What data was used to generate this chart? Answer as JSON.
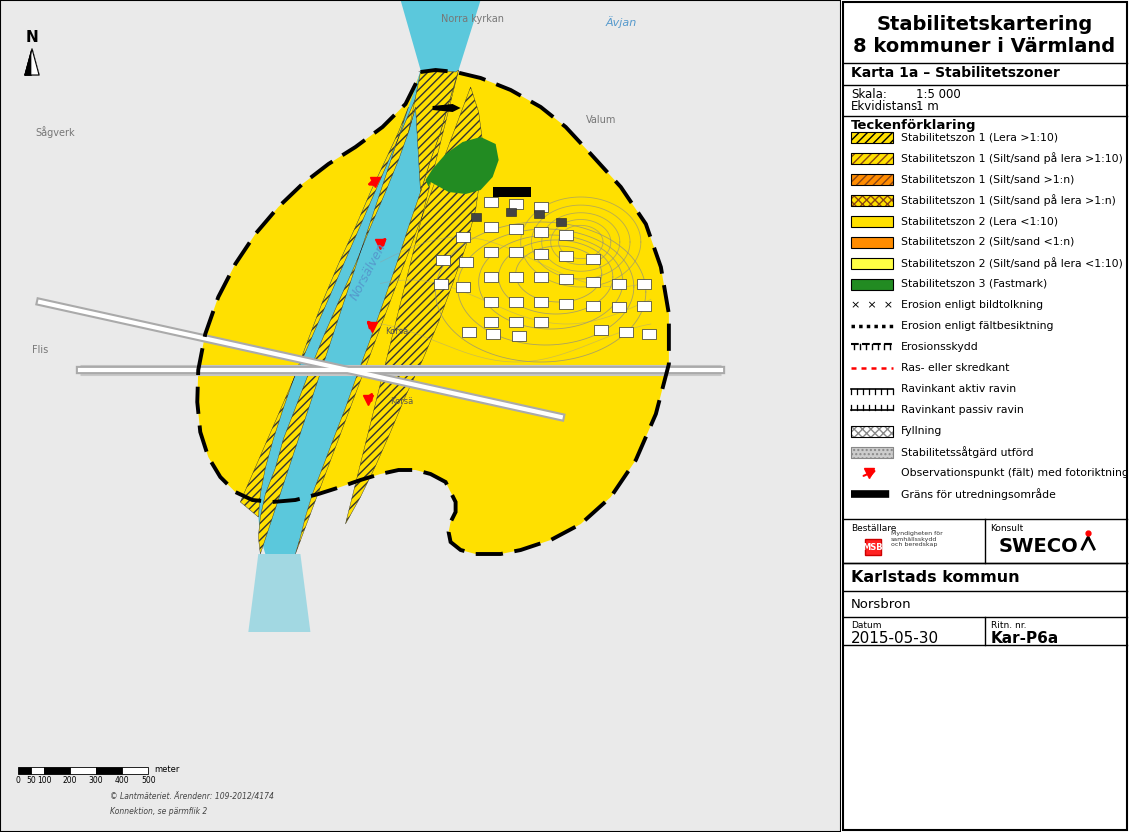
{
  "title1": "Stabilitetskartering",
  "title2": "8 kommuner i Värmland",
  "subtitle": "Karta 1a – Stabilitetszoner",
  "skala": "1:5 000",
  "ekvidistans": "1 m",
  "teckenforklaring": "Teckenförklaring",
  "legend_items": [
    {
      "type": "hatch",
      "color": "#FFE000",
      "hatch": "////",
      "hatch_color": "#000000",
      "label": "Stabilitetszon 1 (Lera >1:10)"
    },
    {
      "type": "hatch",
      "color": "#FFE000",
      "hatch": "////",
      "hatch_color": "#8B4513",
      "label": "Stabilitetszon 1 (Silt/sand på lera >1:10)"
    },
    {
      "type": "hatch",
      "color": "#FF8C00",
      "hatch": "////",
      "hatch_color": "#8B4513",
      "label": "Stabilitetszon 1 (Silt/sand >1:n)"
    },
    {
      "type": "hatch",
      "color": "#FFE000",
      "hatch": "xxxx",
      "hatch_color": "#8B4513",
      "label": "Stabilitetszon 1 (Silt/sand på lera >1:n)"
    },
    {
      "type": "solid",
      "color": "#FFE000",
      "label": "Stabilitetszon 2 (Lera <1:10)"
    },
    {
      "type": "solid",
      "color": "#FF8C00",
      "label": "Stabilitetszon 2 (Silt/sand <1:n)"
    },
    {
      "type": "solid",
      "color": "#FFFF44",
      "label": "Stabilitetszon 2 (Silt/sand på lera <1:10)"
    },
    {
      "type": "solid",
      "color": "#228B22",
      "label": "Stabilitetszon 3 (Fastmark)"
    },
    {
      "type": "cross_text",
      "label": "Erosion enligt bildtolkning"
    },
    {
      "type": "dotted_line",
      "label": "Erosion enligt fältbesiktning"
    },
    {
      "type": "dash_line_barrier",
      "label": "Erosionsskydd"
    },
    {
      "type": "red_dotted",
      "label": "Ras- eller skredkant"
    },
    {
      "type": "ravin_aktiv",
      "label": "Ravinkant aktiv ravin"
    },
    {
      "type": "ravin_passiv",
      "label": "Ravinkant passiv ravin"
    },
    {
      "type": "hatch_fill",
      "color": "#FFFFFF",
      "hatch": "xxxx",
      "hatch_color": "#888888",
      "label": "Fyllning"
    },
    {
      "type": "stipple_fill",
      "label": "Stabilitetssåtgärd utförd"
    },
    {
      "type": "red_arrow",
      "label": "Observationspunkt (fält) med fotoriktning"
    },
    {
      "type": "thick_dash",
      "label": "Gräns för utredningsområde"
    }
  ],
  "bestallare_label": "Beställare",
  "konsult_label": "Konsult",
  "konsult_name": "SWECO",
  "kommun": "Karlstads kommun",
  "projekt": "Norsbron",
  "datum_label": "Datum",
  "datum": "2015-05-30",
  "ritnnr_label": "Ritn. nr.",
  "ritnnr": "Kar-P6a",
  "bg_color": "#FFFFFF",
  "panel_bg": "#FFFFFF",
  "scale_bar_ticks": [
    0,
    50,
    100,
    200,
    300,
    400,
    500
  ],
  "scale_label": "meter",
  "copyright": "© Lantmäteriet. Ärendenr: 109-2012/4174",
  "konnektion": "Konnektion, se pärmflik 2",
  "map_bg": "#EAEAEA",
  "river_color": "#5BC8DC",
  "yellow_main": "#FFE000",
  "green_color": "#228B22"
}
